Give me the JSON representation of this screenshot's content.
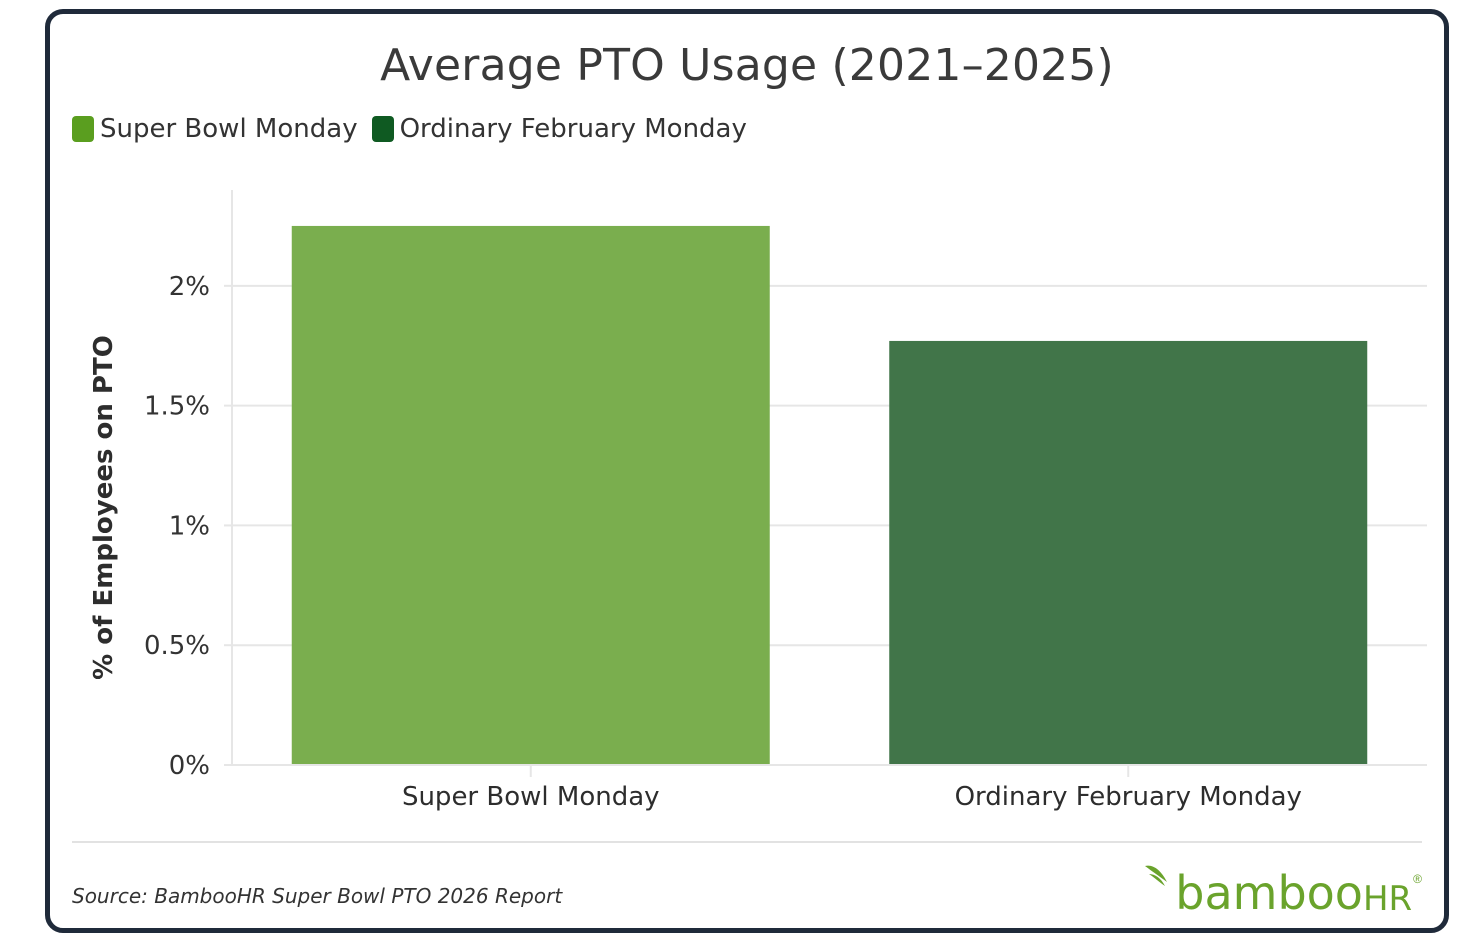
{
  "chart_data": {
    "type": "bar",
    "title": "Average PTO Usage (2021–2025)",
    "categories": [
      "Super Bowl Monday",
      "Ordinary February Monday"
    ],
    "values": [
      2.25,
      1.77
    ],
    "value_unit": "%",
    "ylabel": "% of Employees on PTO",
    "xlabel": "",
    "ylim": [
      0,
      2.4
    ],
    "yticks": [
      0,
      0.5,
      1,
      1.5,
      2
    ],
    "ytick_labels": [
      "0%",
      "0.5%",
      "1%",
      "1.5%",
      "2%"
    ],
    "grid": true,
    "legend_position": "top-left",
    "legend": [
      {
        "label": "Super Bowl Monday",
        "color": "#5a9e1f"
      },
      {
        "label": "Ordinary February Monday",
        "color": "#0f5a22"
      }
    ],
    "bar_colors": [
      "#7aae4e",
      "#417549"
    ]
  },
  "footer": {
    "source": "Source: BambooHR Super Bowl PTO 2026 Report",
    "logo_main": "bamboo",
    "logo_suffix": "HR",
    "logo_mark": "®"
  },
  "colors": {
    "border": "#1f2a3a",
    "brand_green": "#6aa32c"
  }
}
